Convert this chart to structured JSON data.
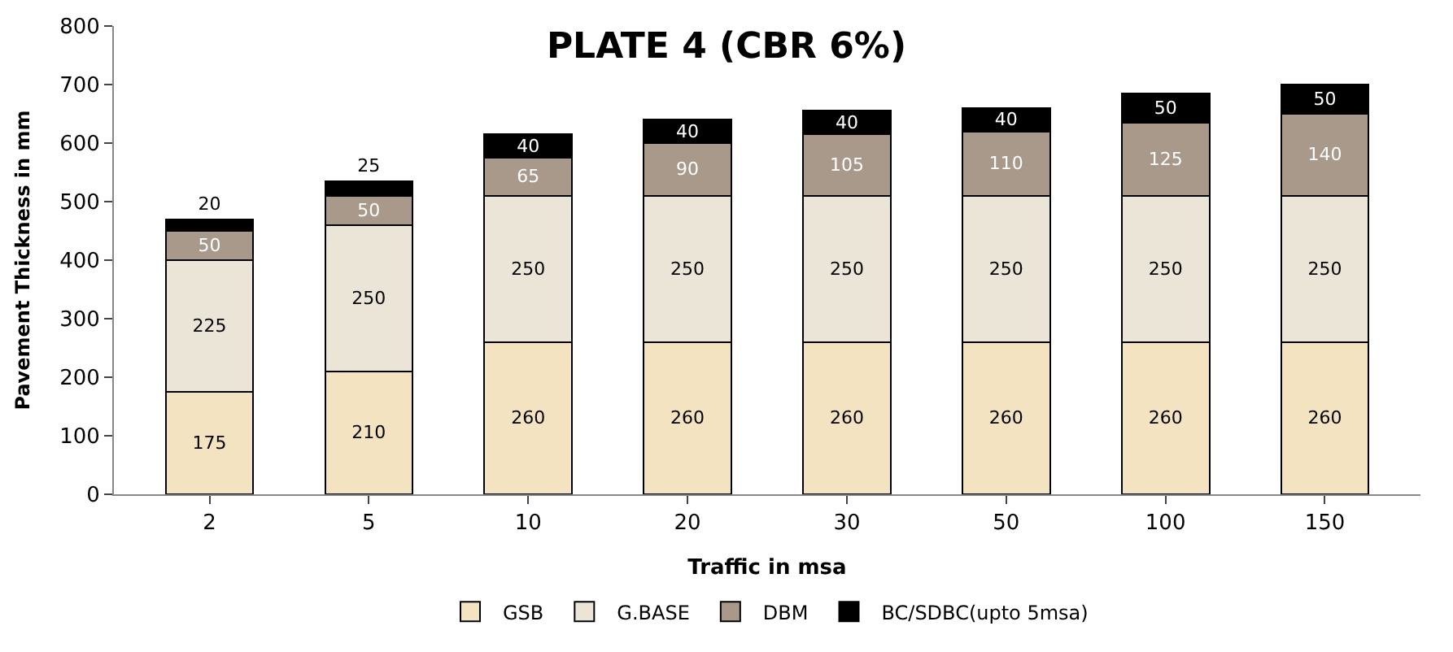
{
  "chart_data": {
    "type": "bar",
    "title": "PLATE 4 (CBR 6%)",
    "xlabel": "Traffic in msa",
    "ylabel": "Pavement Thickness in mm",
    "categories": [
      "2",
      "5",
      "10",
      "20",
      "30",
      "50",
      "100",
      "150"
    ],
    "series": [
      {
        "name": "GSB",
        "color": "#f3e3c0",
        "values": [
          175,
          210,
          260,
          260,
          260,
          260,
          260,
          260
        ]
      },
      {
        "name": "G.BASE",
        "color": "#ebe5d8",
        "values": [
          225,
          250,
          250,
          250,
          250,
          250,
          250,
          250
        ]
      },
      {
        "name": "DBM",
        "color": "#a8998a",
        "values": [
          50,
          50,
          65,
          90,
          105,
          110,
          125,
          140
        ]
      },
      {
        "name": "BC/SDBC(upto 5msa)",
        "color": "#000000",
        "values": [
          20,
          25,
          40,
          40,
          40,
          40,
          50,
          50
        ]
      }
    ],
    "stacked": true,
    "data_labels": true,
    "ylim": [
      0,
      800
    ],
    "yticks": [
      0,
      100,
      200,
      300,
      400,
      500,
      600,
      700,
      800
    ],
    "legend": "bottom"
  }
}
